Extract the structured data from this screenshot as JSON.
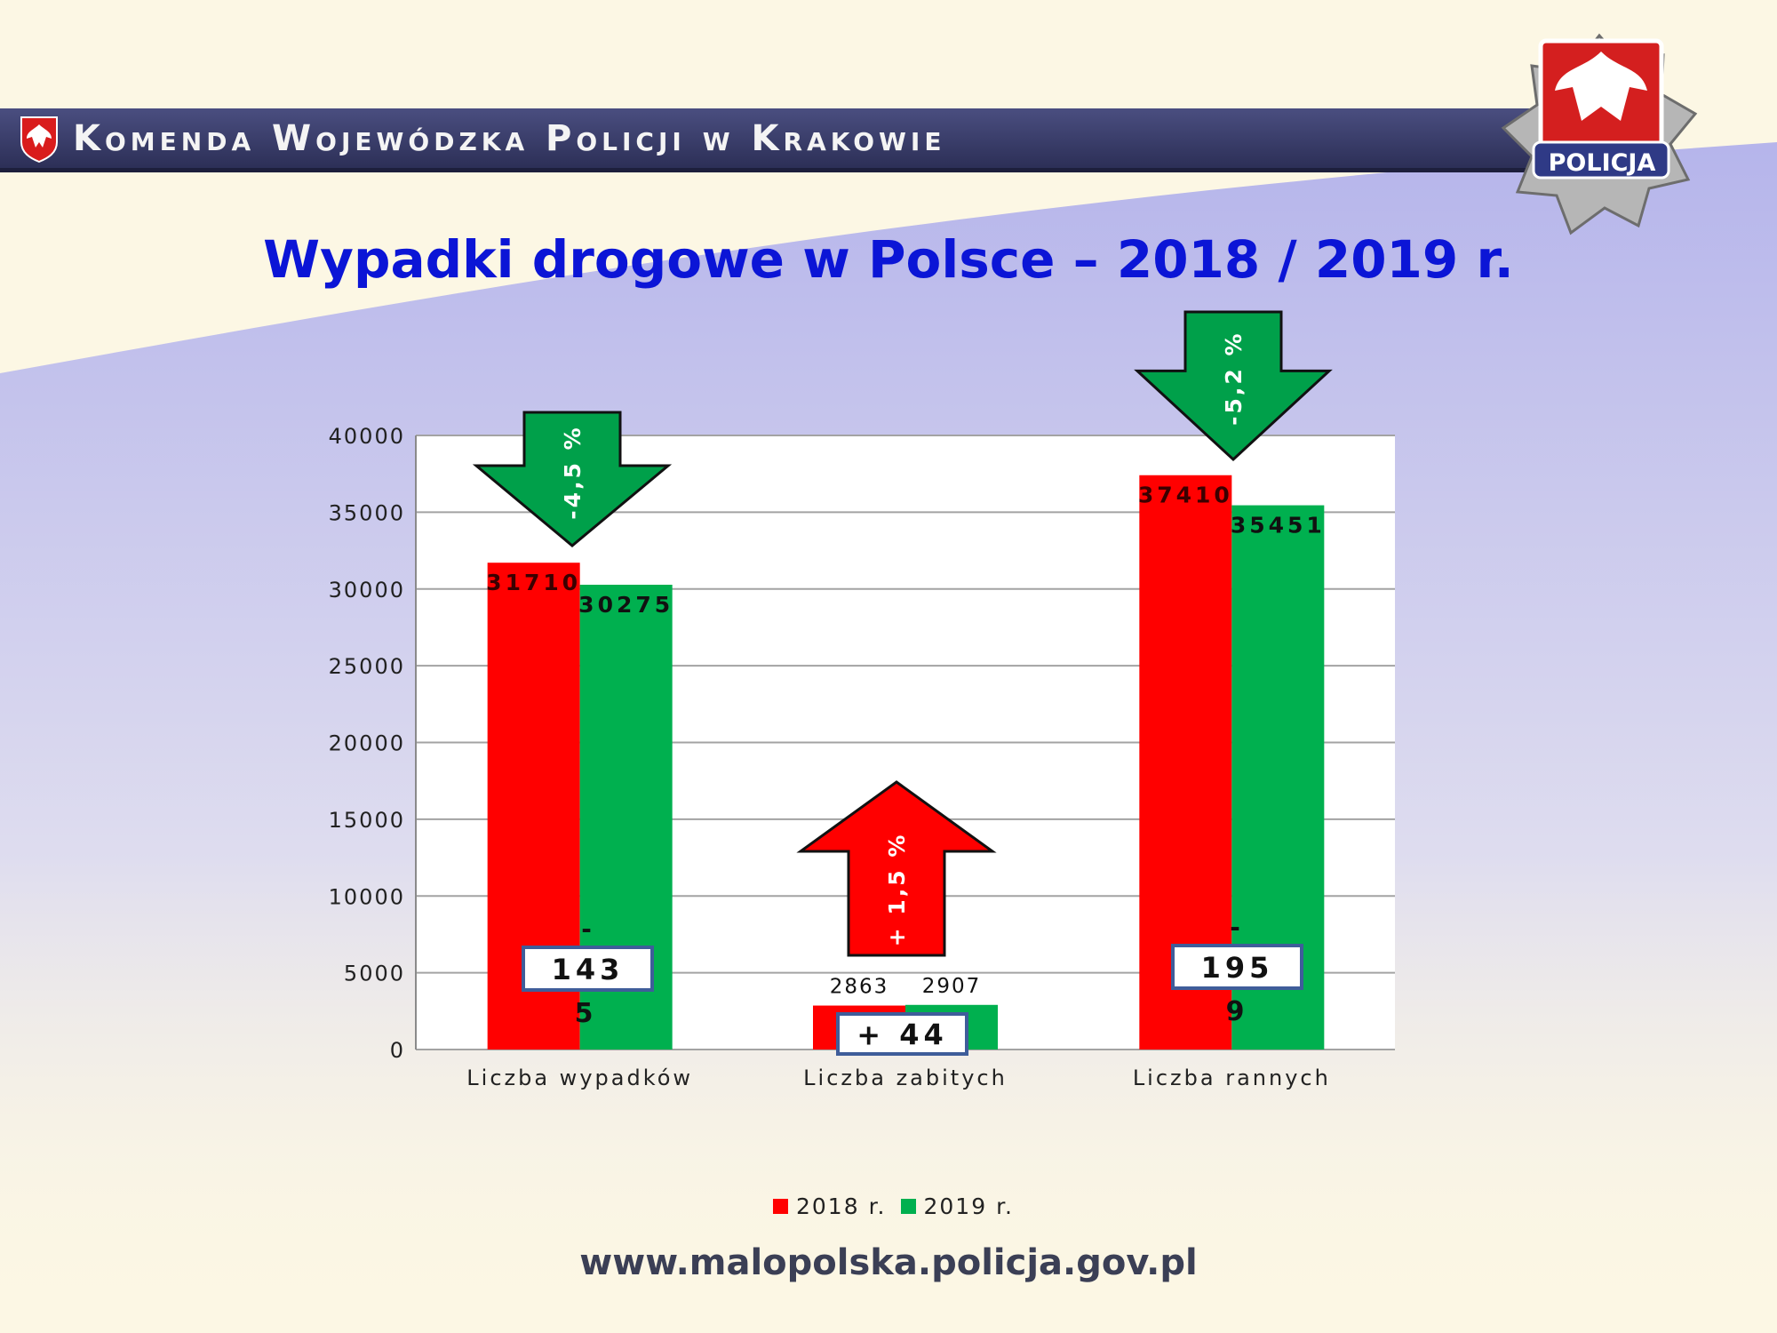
{
  "header": {
    "org_name": "Komenda Wojewódzka Policji w Krakowie",
    "badge_text": "POLICJA"
  },
  "footer": {
    "url": "www.malopolska.policja.gov.pl"
  },
  "colors": {
    "y2018": "#ff0000",
    "y2019": "#00b04f",
    "title": "#0b15d6",
    "header_bar": "#3a3e70"
  },
  "chart_data": {
    "type": "bar",
    "title": "Wypadki drogowe w Polsce – 2018 / 2019 r.",
    "xlabel": "",
    "ylabel": "",
    "ylim": [
      0,
      40000
    ],
    "yticks": [
      "0",
      "5000",
      "10000",
      "15000",
      "20000",
      "25000",
      "30000",
      "35000",
      "40000"
    ],
    "categories": [
      "Liczba wypadków",
      "Liczba zabitych",
      "Liczba rannych"
    ],
    "series": [
      {
        "name": "2018 r.",
        "values": [
          31710,
          2863,
          37410
        ],
        "labels": [
          "31710",
          "2863",
          "37410"
        ]
      },
      {
        "name": "2019 r.",
        "values": [
          30275,
          2907,
          35451
        ],
        "labels": [
          "30275",
          "2907",
          "35451"
        ]
      }
    ],
    "grid": true,
    "legend": "bottom",
    "annotations": {
      "arrows": [
        {
          "category": "Liczba wypadków",
          "direction": "down",
          "text": "-4,5 %"
        },
        {
          "category": "Liczba zabitych",
          "direction": "up",
          "text": "+ 1,5 %"
        },
        {
          "category": "Liczba rannych",
          "direction": "down",
          "text": "-5,2 %"
        }
      ],
      "difference_boxes": [
        {
          "category": "Liczba wypadków",
          "sign": "-",
          "main": "143",
          "tail": "5"
        },
        {
          "category": "Liczba zabitych",
          "sign": "",
          "main": "+ 44",
          "tail": ""
        },
        {
          "category": "Liczba rannych",
          "sign": "-",
          "main": "195",
          "tail": "9"
        }
      ]
    }
  }
}
